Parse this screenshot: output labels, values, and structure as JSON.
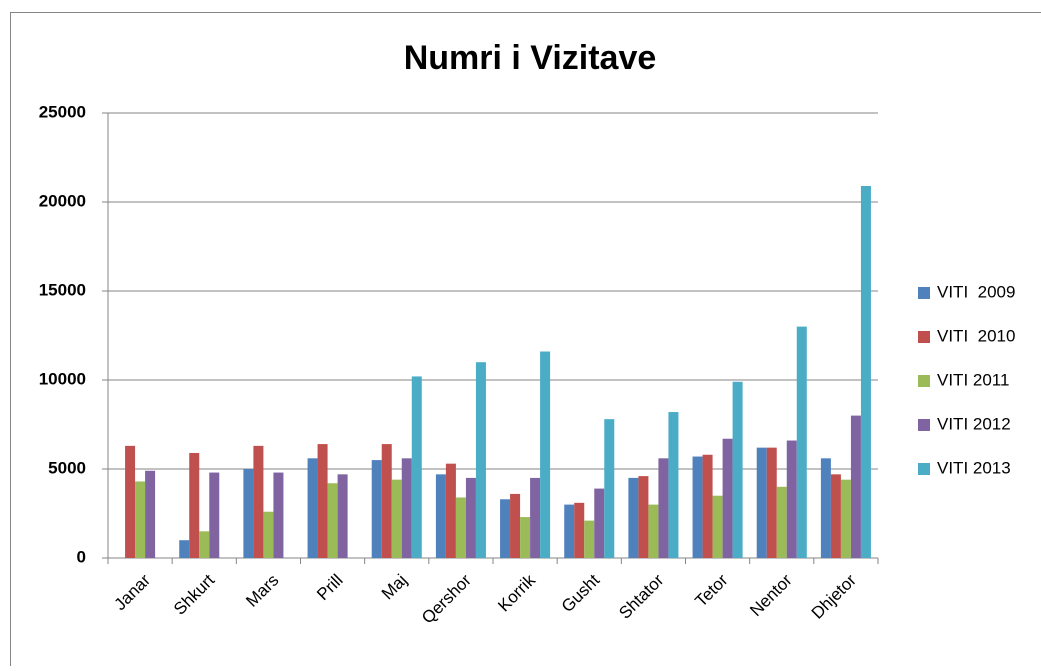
{
  "chart_data": {
    "type": "bar",
    "title": "Numri i Vizitave",
    "categories": [
      "Janar",
      "Shkurt",
      "Mars",
      "Prill",
      "Maj",
      "Qershor",
      "Korrik",
      "Gusht",
      "Shtator",
      "Tetor",
      "Nentor",
      "Dhjetor"
    ],
    "series": [
      {
        "name": "VITI  2009",
        "color": "#4f81bd",
        "values": [
          null,
          1000,
          5000,
          5600,
          5500,
          4700,
          3300,
          3000,
          4500,
          5700,
          6200,
          5600
        ]
      },
      {
        "name": "VITI  2010",
        "color": "#c0504d",
        "values": [
          6300,
          5900,
          6300,
          6400,
          6400,
          5300,
          3600,
          3100,
          4600,
          5800,
          6200,
          4700
        ]
      },
      {
        "name": "VITI 2011",
        "color": "#9bbb59",
        "values": [
          4300,
          1500,
          2600,
          4200,
          4400,
          3400,
          2300,
          2100,
          3000,
          3500,
          4000,
          4400
        ]
      },
      {
        "name": "VITI 2012",
        "color": "#8064a2",
        "values": [
          4900,
          4800,
          4800,
          4700,
          5600,
          4500,
          4500,
          3900,
          5600,
          6700,
          6600,
          8000
        ]
      },
      {
        "name": "VITI 2013",
        "color": "#4bacc6",
        "values": [
          null,
          null,
          null,
          null,
          10200,
          11000,
          11600,
          7800,
          8200,
          9900,
          13000,
          20900
        ]
      }
    ],
    "ylim": [
      0,
      25000
    ],
    "yticks": [
      0,
      5000,
      10000,
      15000,
      20000,
      25000
    ],
    "grid": true,
    "legend": "right"
  }
}
